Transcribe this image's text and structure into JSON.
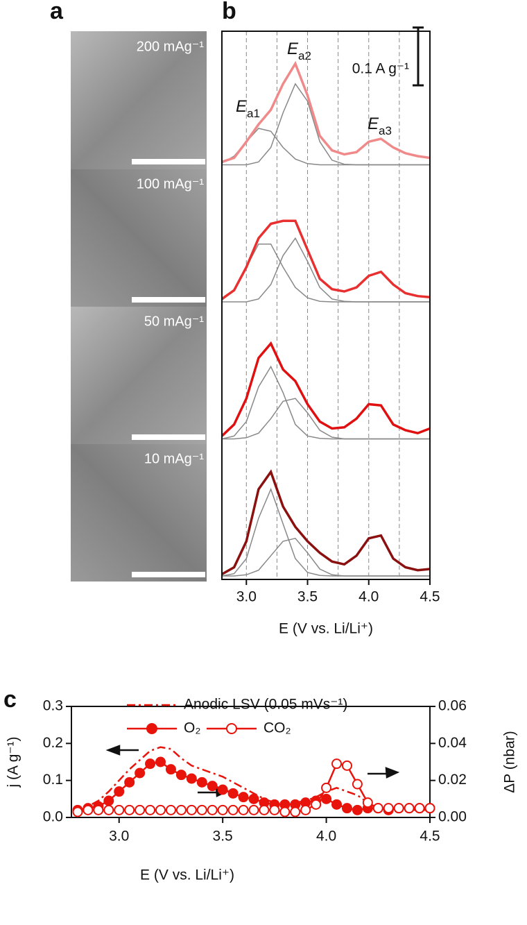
{
  "panel_labels": [
    "a",
    "b",
    "c"
  ],
  "images": [
    {
      "label": "200 mAg⁻¹"
    },
    {
      "label": "100 mAg⁻¹"
    },
    {
      "label": "50 mAg⁻¹"
    },
    {
      "label": "10 mAg⁻¹"
    }
  ],
  "chart_data": [
    {
      "type": "line",
      "xlabel": "E (V vs. Li/Li⁺)",
      "xlim": [
        2.8,
        4.5
      ],
      "xticks": [
        {
          "value": 3,
          "label": "3.0"
        },
        3.5,
        {
          "value": 4,
          "label": "4.0"
        },
        4.5
      ],
      "ylim": [
        -0.006,
        0.231
      ],
      "vlines": [
        3,
        3.25,
        3.5,
        3.75,
        4,
        4.25
      ],
      "scale_bar": {
        "value": 0.1,
        "label": "0.1 A g⁻¹"
      },
      "annotations": [
        {
          "text": "E",
          "sub": "a1"
        },
        {
          "text": "E",
          "sub": "a2"
        },
        {
          "text": "E",
          "sub": "a3"
        }
      ],
      "x": [
        2.8,
        2.9,
        3.0,
        3.1,
        3.2,
        3.3,
        3.4,
        3.5,
        3.6,
        3.7,
        3.8,
        3.9,
        4.0,
        4.1,
        4.2,
        4.3,
        4.4,
        4.5
      ],
      "panels": [
        {
          "series": [
            {
              "color": "#888888",
              "values": [
                0.003,
                0.015,
                0.04,
                0.063,
                0.058,
                0.03,
                0.01,
                0.002,
                0,
                0,
                0,
                0,
                0,
                0,
                0,
                0,
                0,
                0
              ]
            },
            {
              "color": "#888888",
              "values": [
                0,
                0,
                0,
                0.005,
                0.03,
                0.09,
                0.14,
                0.11,
                0.04,
                0.008,
                0.001,
                0,
                0,
                0,
                0,
                0,
                0,
                0
              ]
            },
            {
              "color": "#f08a8a",
              "values": [
                0.005,
                0.012,
                0.04,
                0.07,
                0.095,
                0.14,
                0.175,
                0.12,
                0.05,
                0.025,
                0.018,
                0.022,
                0.04,
                0.045,
                0.03,
                0.02,
                0.015,
                0.012
              ]
            }
          ]
        },
        {
          "series": [
            {
              "color": "#888888",
              "values": [
                0.003,
                0.02,
                0.06,
                0.1,
                0.1,
                0.06,
                0.025,
                0.007,
                0.001,
                0,
                0,
                0,
                0,
                0,
                0,
                0,
                0,
                0
              ]
            },
            {
              "color": "#888888",
              "values": [
                0,
                0,
                0,
                0.005,
                0.03,
                0.08,
                0.11,
                0.07,
                0.025,
                0.005,
                0.001,
                0,
                0,
                0,
                0,
                0,
                0,
                0
              ]
            },
            {
              "color": "#e83030",
              "values": [
                0.005,
                0.02,
                0.06,
                0.11,
                0.135,
                0.14,
                0.14,
                0.09,
                0.04,
                0.022,
                0.018,
                0.025,
                0.045,
                0.052,
                0.03,
                0.015,
                0.01,
                0.008
              ]
            }
          ]
        },
        {
          "series": [
            {
              "color": "#888888",
              "values": [
                0,
                0.005,
                0.03,
                0.09,
                0.125,
                0.08,
                0.025,
                0.005,
                0.001,
                0,
                0,
                0,
                0,
                0,
                0,
                0,
                0,
                0
              ]
            },
            {
              "color": "#888888",
              "values": [
                0,
                0,
                0.002,
                0.01,
                0.035,
                0.065,
                0.07,
                0.045,
                0.015,
                0.003,
                0,
                0,
                0,
                0,
                0,
                0,
                0,
                0
              ]
            },
            {
              "color": "#e01010",
              "values": [
                0.005,
                0.025,
                0.07,
                0.14,
                0.165,
                0.12,
                0.1,
                0.06,
                0.03,
                0.018,
                0.02,
                0.035,
                0.06,
                0.058,
                0.025,
                0.015,
                0.01,
                0.018
              ]
            }
          ]
        },
        {
          "series": [
            {
              "color": "#888888",
              "values": [
                0,
                0.004,
                0.03,
                0.1,
                0.15,
                0.09,
                0.03,
                0.006,
                0.001,
                0,
                0,
                0,
                0,
                0,
                0,
                0,
                0,
                0
              ]
            },
            {
              "color": "#888888",
              "values": [
                0,
                0,
                0.002,
                0.01,
                0.035,
                0.06,
                0.065,
                0.04,
                0.012,
                0.002,
                0,
                0,
                0,
                0,
                0,
                0,
                0,
                0
              ]
            },
            {
              "color": "#8b1010",
              "values": [
                0.003,
                0.015,
                0.06,
                0.15,
                0.18,
                0.12,
                0.085,
                0.06,
                0.04,
                0.025,
                0.02,
                0.035,
                0.065,
                0.07,
                0.03,
                0.015,
                0.01,
                0.012
              ]
            }
          ]
        }
      ]
    },
    {
      "type": "line",
      "xlabel": "E (V vs. Li/Li⁺)",
      "ylabel": "j (A g⁻¹)",
      "y2label": "ΔP (nbar)",
      "xlim": [
        2.77,
        4.5
      ],
      "xticks": [
        {
          "value": 3,
          "label": "3.0"
        },
        3.5,
        {
          "value": 4,
          "label": "4.0"
        },
        4.5
      ],
      "ylim": [
        0,
        0.3
      ],
      "yticks": [
        {
          "value": 0,
          "label": "0.0"
        },
        0.1,
        0.2,
        0.3
      ],
      "y2lim": [
        0,
        0.06
      ],
      "y2ticks": [
        {
          "value": 0,
          "label": "0.00"
        },
        {
          "value": 0.02,
          "label": "0.02"
        },
        {
          "value": 0.04,
          "label": "0.04"
        },
        {
          "value": 0.06,
          "label": "0.06"
        }
      ],
      "x": [
        2.8,
        2.85,
        2.9,
        2.95,
        3.0,
        3.05,
        3.1,
        3.15,
        3.2,
        3.25,
        3.3,
        3.35,
        3.4,
        3.45,
        3.5,
        3.55,
        3.6,
        3.65,
        3.7,
        3.75,
        3.8,
        3.85,
        3.9,
        3.95,
        4.0,
        4.05,
        4.1,
        4.15,
        4.2,
        4.25,
        4.3,
        4.35,
        4.4,
        4.45,
        4.5
      ],
      "series": [
        {
          "name": "Anodic LSV (0.05 mVs⁻¹)",
          "color": "#e8140c",
          "style": "dashdot",
          "values": [
            0.01,
            0.03,
            0.045,
            0.07,
            0.1,
            0.13,
            0.155,
            0.18,
            0.19,
            0.185,
            0.16,
            0.14,
            0.13,
            0.12,
            0.11,
            0.095,
            0.08,
            0.065,
            0.05,
            0.04,
            0.037,
            0.04,
            0.045,
            0.055,
            0.07,
            0.08,
            0.07,
            0.06,
            0.04,
            0.025,
            0.02,
            0.02,
            0.02,
            0.02,
            0.02
          ]
        },
        {
          "name": "O₂",
          "color": "#e8140c",
          "marker": "filled",
          "axis": "y2",
          "values": [
            0.004,
            0.005,
            0.006,
            0.009,
            0.014,
            0.019,
            0.024,
            0.029,
            0.03,
            0.026,
            0.023,
            0.021,
            0.019,
            0.017,
            0.015,
            0.013,
            0.011,
            0.01,
            0.008,
            0.007,
            0.007,
            0.007,
            0.008,
            0.009,
            0.01,
            0.007,
            0.005,
            0.004,
            0.005,
            0.005,
            0.004,
            0.005,
            0.005,
            0.005,
            0.005
          ]
        },
        {
          "name": "CO₂",
          "color": "#e8140c",
          "marker": "open",
          "axis": "y2",
          "values": [
            0.003,
            0.004,
            0.004,
            0.004,
            0.004,
            0.004,
            0.004,
            0.004,
            0.004,
            0.004,
            0.004,
            0.004,
            0.004,
            0.004,
            0.004,
            0.004,
            0.004,
            0.004,
            0.004,
            0.004,
            0.003,
            0.003,
            0.004,
            0.007,
            0.016,
            0.029,
            0.028,
            0.018,
            0.008,
            0.005,
            0.005,
            0.005,
            0.005,
            0.005,
            0.005
          ]
        }
      ]
    }
  ]
}
